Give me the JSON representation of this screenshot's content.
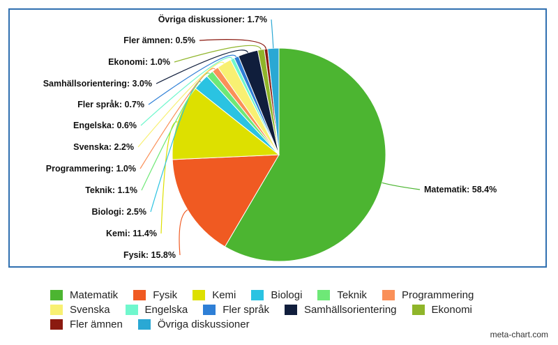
{
  "chart_data": {
    "type": "pie",
    "categories": [
      "Matematik",
      "Fysik",
      "Kemi",
      "Biologi",
      "Teknik",
      "Programmering",
      "Svenska",
      "Engelska",
      "Fler språk",
      "Samhällsorientering",
      "Ekonomi",
      "Fler ämnen",
      "Övriga diskussioner"
    ],
    "values": [
      58.4,
      15.8,
      11.4,
      2.5,
      1.1,
      1.0,
      2.2,
      0.6,
      0.7,
      3.0,
      1.0,
      0.5,
      1.7
    ],
    "labels": [
      "Matematik: 58.4%",
      "Fysik: 15.8%",
      "Kemi: 11.4%",
      "Biologi: 2.5%",
      "Teknik: 1.1%",
      "Programmering: 1.0%",
      "Svenska: 2.2%",
      "Engelska: 0.6%",
      "Fler språk: 0.7%",
      "Samhällsorientering: 3.0%",
      "Ekonomi: 1.0%",
      "Fler ämnen: 0.5%",
      "Övriga diskussioner: 1.7%"
    ],
    "colors": [
      "#4cb531",
      "#f05a22",
      "#dde000",
      "#2ac3e2",
      "#6ee877",
      "#fa9058",
      "#f8f072",
      "#70f7cd",
      "#2e7fd6",
      "#101e3c",
      "#8fb52a",
      "#8b1a10",
      "#2aa8d4"
    ],
    "legend_placement": "bottom"
  },
  "watermark": "meta-chart.com"
}
